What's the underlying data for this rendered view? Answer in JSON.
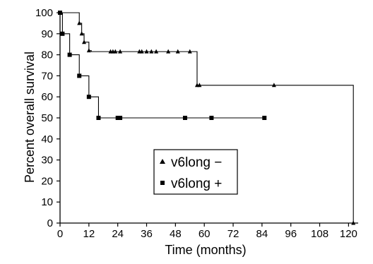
{
  "chart_data": {
    "type": "line",
    "title": "",
    "xlabel": "Time (months)",
    "ylabel": "Percent overall survival",
    "xlim": [
      0,
      124
    ],
    "ylim": [
      0,
      100
    ],
    "x_ticks": [
      0,
      12,
      24,
      36,
      48,
      60,
      72,
      84,
      96,
      108,
      120
    ],
    "y_ticks": [
      0,
      10,
      20,
      30,
      40,
      50,
      60,
      70,
      80,
      90,
      100
    ],
    "grid": false,
    "legend_position": "center-left",
    "series": [
      {
        "name": "v6long −",
        "marker": "triangle",
        "color": "#000000",
        "step_x": [
          0,
          8,
          9,
          10,
          12,
          13,
          57,
          122
        ],
        "step_y": [
          100,
          95,
          90,
          86,
          82,
          81.5,
          65.5,
          0
        ],
        "markers": [
          [
            8,
            95
          ],
          [
            9,
            90
          ],
          [
            10,
            86
          ],
          [
            12,
            82
          ],
          [
            21,
            81.5
          ],
          [
            22,
            81.5
          ],
          [
            23,
            81.5
          ],
          [
            25,
            81.5
          ],
          [
            33,
            81.5
          ],
          [
            34,
            81.5
          ],
          [
            36,
            81.5
          ],
          [
            38,
            81.5
          ],
          [
            40,
            81.5
          ],
          [
            45,
            81.5
          ],
          [
            49,
            81.5
          ],
          [
            54,
            81.5
          ],
          [
            57,
            65.5
          ],
          [
            58,
            65.5
          ],
          [
            89,
            65.5
          ],
          [
            122,
            0
          ]
        ]
      },
      {
        "name": "v6long +",
        "marker": "square",
        "color": "#000000",
        "step_x": [
          0,
          1,
          4,
          8,
          12,
          16
        ],
        "step_y": [
          100,
          90,
          80,
          70,
          60,
          50
        ],
        "end_x": 85,
        "markers": [
          [
            0,
            100
          ],
          [
            1,
            90
          ],
          [
            4,
            80
          ],
          [
            8,
            70
          ],
          [
            12,
            60
          ],
          [
            16,
            50
          ],
          [
            24,
            50
          ],
          [
            25,
            50
          ],
          [
            52,
            50
          ],
          [
            63,
            50
          ],
          [
            85,
            50
          ]
        ]
      }
    ]
  }
}
